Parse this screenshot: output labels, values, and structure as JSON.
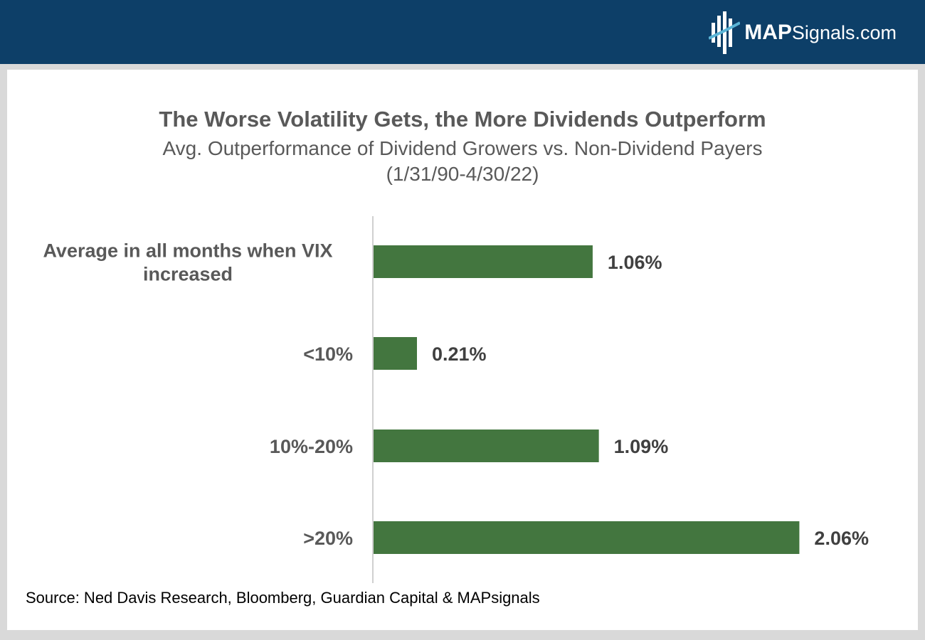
{
  "brand": {
    "logo_bold": "MAP",
    "logo_rest": "Signals.com"
  },
  "chart_data": {
    "type": "bar",
    "orientation": "horizontal",
    "title": "The Worse Volatility Gets, the More Dividends Outperform",
    "subtitle": "Avg. Outperformance of Dividend Growers vs. Non-Dividend Payers",
    "subtitle2": "(1/31/90-4/30/22)",
    "categories": [
      [
        "Average in all months when VIX",
        "increased"
      ],
      [
        "<10%"
      ],
      [
        "10%-20%"
      ],
      [
        ">20%"
      ]
    ],
    "values": [
      1.06,
      0.21,
      1.09,
      2.06
    ],
    "value_labels": [
      "1.06%",
      "0.21%",
      "1.09%",
      "2.06%"
    ],
    "xlim": [
      0,
      2.2
    ],
    "grid": false,
    "legend": "none",
    "bar_color": "#43763f"
  },
  "source": "Source: Ned Davis Research, Bloomberg, Guardian Capital & MAPsignals"
}
